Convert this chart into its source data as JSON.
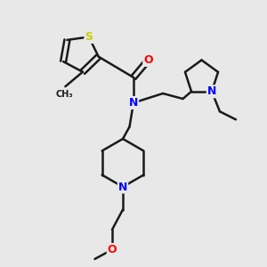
{
  "background_color": "#e8e8e8",
  "bond_color": "#1a1a1a",
  "S_color": "#cccc00",
  "N_color": "#0000ff",
  "O_color": "#ff0000",
  "C_color": "#1a1a1a",
  "figsize": [
    3.0,
    3.0
  ],
  "dpi": 100,
  "xlim": [
    0,
    10
  ],
  "ylim": [
    0,
    10
  ]
}
